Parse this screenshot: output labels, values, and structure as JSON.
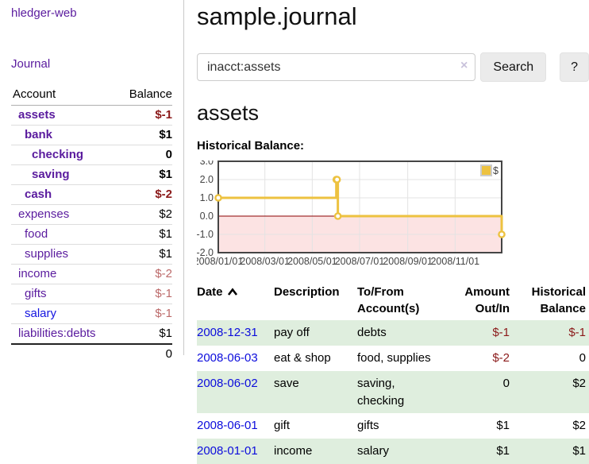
{
  "app_title": "hledger-web",
  "nav": {
    "journal": "Journal"
  },
  "sidebar": {
    "headers": {
      "account": "Account",
      "balance": "Balance"
    },
    "accounts": [
      {
        "name": "assets",
        "balance": "$-1"
      },
      {
        "name": "bank",
        "balance": "$1"
      },
      {
        "name": "checking",
        "balance": "0"
      },
      {
        "name": "saving",
        "balance": "$1"
      },
      {
        "name": "cash",
        "balance": "$-2"
      },
      {
        "name": "expenses",
        "balance": "$2"
      },
      {
        "name": "food",
        "balance": "$1"
      },
      {
        "name": "supplies",
        "balance": "$1"
      },
      {
        "name": "income",
        "balance": "$-2"
      },
      {
        "name": "gifts",
        "balance": "$-1"
      },
      {
        "name": "salary",
        "balance": "$-1"
      },
      {
        "name": "liabilities:debts",
        "balance": "$1"
      }
    ],
    "total": "0"
  },
  "main": {
    "title": "sample.journal",
    "search": {
      "value": "inacct:assets",
      "clear_icon": "×",
      "search_button": "Search",
      "help_button": "?"
    },
    "account_heading": "assets"
  },
  "chart_data": {
    "type": "line",
    "step": true,
    "title": "Historical Balance:",
    "series": [
      {
        "name": "$",
        "color": "#EDC240",
        "points": [
          [
            "2008-01-01",
            1
          ],
          [
            "2008-06-01",
            2
          ],
          [
            "2008-06-02",
            2
          ],
          [
            "2008-06-03",
            0
          ],
          [
            "2008-12-31",
            -1
          ]
        ]
      }
    ],
    "xlim": [
      "2008-01-01",
      "2008-12-31"
    ],
    "ylim": [
      -2,
      3
    ],
    "x_ticks": [
      "2008/01/01",
      "2008/03/01",
      "2008/05/01",
      "2008/07/01",
      "2008/09/01",
      "2008/11/01"
    ],
    "y_ticks": [
      3.0,
      2.0,
      1.0,
      0.0,
      -1.0,
      -2.0
    ],
    "legend": {
      "label": "$",
      "position": "top-right"
    },
    "grid": true,
    "negative_region_color": "#fce3e3",
    "zero_line_color": "#8b0000",
    "grid_color": "#e3e3e3",
    "border_color": "#454545",
    "tick_color": "#444444"
  },
  "register": {
    "headers": {
      "date": "Date",
      "description": "Description",
      "accounts": "To/From Account(s)",
      "amount": "Amount Out/In",
      "balance": "Historical Balance"
    },
    "rows": [
      {
        "date": "2008-12-31",
        "description": "pay off",
        "accounts": "debts",
        "amount": "$-1",
        "balance": "$-1"
      },
      {
        "date": "2008-06-03",
        "description": "eat & shop",
        "accounts": "food, supplies",
        "amount": "$-2",
        "balance": "0"
      },
      {
        "date": "2008-06-02",
        "description": "save",
        "accounts": "saving, checking",
        "amount": "0",
        "balance": "$2"
      },
      {
        "date": "2008-06-01",
        "description": "gift",
        "accounts": "gifts",
        "amount": "$1",
        "balance": "$2"
      },
      {
        "date": "2008-01-01",
        "description": "income",
        "accounts": "salary",
        "amount": "$1",
        "balance": "$1"
      }
    ]
  },
  "colors": {
    "link_purple": "#5a1b9e",
    "link_blue": "#1414e0",
    "negative_dark": "#8b1a1a",
    "negative_muted": "#bc6a6a",
    "row_green": "#dfeede",
    "chart_line": "#EDC240",
    "chart_negative_fill": "#fce3e3",
    "chart_zero_line": "#8b0000"
  }
}
